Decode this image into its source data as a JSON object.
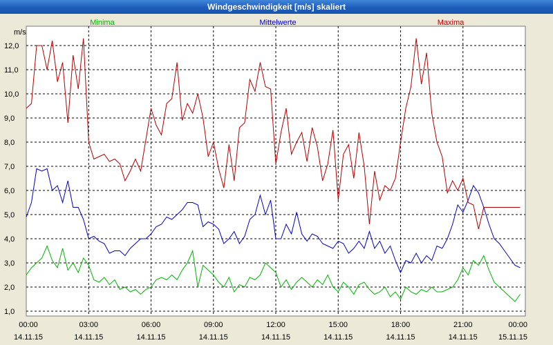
{
  "window": {
    "title": "Windgeschwindigkeit [m/s] skaliert"
  },
  "chart_data": {
    "type": "line",
    "title": "Windgeschwindigkeit [m/s] skaliert",
    "ylabel": "m/s",
    "xlabel": "",
    "ylim": [
      0.8,
      12.8
    ],
    "xlim": [
      0,
      24
    ],
    "grid": true,
    "yticks": [
      "1,0",
      "2,0",
      "3,0",
      "4,0",
      "5,0",
      "6,0",
      "7,0",
      "8,0",
      "9,0",
      "10,0",
      "11,0",
      "12,0"
    ],
    "xticks": [
      {
        "time": "00:00",
        "date": "14.11.15"
      },
      {
        "time": "03:00",
        "date": "14.11.15"
      },
      {
        "time": "06:00",
        "date": "14.11.15"
      },
      {
        "time": "09:00",
        "date": "14.11.15"
      },
      {
        "time": "12:00",
        "date": "14.11.15"
      },
      {
        "time": "15:00",
        "date": "14.11.15"
      },
      {
        "time": "18:00",
        "date": "14.11.15"
      },
      {
        "time": "21:00",
        "date": "14.11.15"
      },
      {
        "time": "00:00",
        "date": "15.11.15"
      }
    ],
    "series": [
      {
        "name": "Minima",
        "color": "#00B400",
        "x": [
          0,
          0.25,
          0.5,
          0.75,
          1,
          1.25,
          1.5,
          1.75,
          2,
          2.25,
          2.5,
          2.75,
          3,
          3.25,
          3.5,
          3.75,
          4,
          4.25,
          4.5,
          4.75,
          5,
          5.25,
          5.5,
          5.75,
          6,
          6.25,
          6.5,
          6.75,
          7,
          7.25,
          7.5,
          7.75,
          8,
          8.25,
          8.5,
          8.75,
          9,
          9.25,
          9.5,
          9.75,
          10,
          10.25,
          10.5,
          10.75,
          11,
          11.25,
          11.5,
          11.75,
          12,
          12.25,
          12.5,
          12.75,
          13,
          13.25,
          13.5,
          13.75,
          14,
          14.25,
          14.5,
          14.75,
          15,
          15.25,
          15.5,
          15.75,
          16,
          16.25,
          16.5,
          16.75,
          17,
          17.25,
          17.5,
          17.75,
          18,
          18.25,
          18.5,
          18.75,
          19,
          19.25,
          19.5,
          19.75,
          20,
          20.25,
          20.5,
          20.75,
          21,
          21.25,
          21.5,
          21.75,
          22,
          22.25,
          22.5,
          22.75,
          23,
          23.25,
          23.5,
          23.75
        ],
        "values": [
          2.5,
          2.8,
          3.0,
          3.2,
          3.7,
          3.1,
          2.8,
          3.6,
          2.7,
          3.0,
          2.6,
          3.2,
          2.9,
          2.3,
          2.2,
          2.4,
          2.1,
          2.3,
          1.9,
          2.0,
          1.8,
          1.9,
          1.7,
          1.9,
          2.0,
          2.3,
          2.4,
          2.3,
          2.5,
          2.3,
          2.7,
          3.0,
          3.5,
          2.0,
          2.9,
          2.7,
          2.5,
          2.2,
          2.0,
          2.4,
          1.8,
          2.1,
          2.0,
          2.4,
          2.3,
          2.5,
          3.0,
          2.8,
          2.6,
          2.0,
          2.3,
          1.9,
          2.2,
          2.4,
          2.2,
          2.0,
          2.3,
          2.1,
          2.5,
          2.0,
          1.8,
          2.2,
          2.0,
          1.7,
          2.1,
          2.2,
          1.9,
          1.7,
          1.8,
          2.0,
          1.6,
          1.8,
          1.5,
          2.0,
          1.8,
          1.7,
          1.9,
          1.8,
          2.0,
          1.8,
          1.8,
          1.9,
          2.0,
          2.3,
          2.8,
          2.5,
          3.1,
          2.9,
          3.3,
          2.7,
          2.2,
          2.0,
          1.8,
          1.6,
          1.4,
          1.7
        ]
      },
      {
        "name": "Mittelwerte",
        "color": "#0000C0",
        "x": [
          0,
          0.25,
          0.5,
          0.75,
          1,
          1.25,
          1.5,
          1.75,
          2,
          2.25,
          2.5,
          2.75,
          3,
          3.25,
          3.5,
          3.75,
          4,
          4.25,
          4.5,
          4.75,
          5,
          5.25,
          5.5,
          5.75,
          6,
          6.25,
          6.5,
          6.75,
          7,
          7.25,
          7.5,
          7.75,
          8,
          8.25,
          8.5,
          8.75,
          9,
          9.25,
          9.5,
          9.75,
          10,
          10.25,
          10.5,
          10.75,
          11,
          11.25,
          11.5,
          11.75,
          12,
          12.25,
          12.5,
          12.75,
          13,
          13.25,
          13.5,
          13.75,
          14,
          14.25,
          14.5,
          14.75,
          15,
          15.25,
          15.5,
          15.75,
          16,
          16.25,
          16.5,
          16.75,
          17,
          17.25,
          17.5,
          17.75,
          18,
          18.25,
          18.5,
          18.75,
          19,
          19.25,
          19.5,
          19.75,
          20,
          20.25,
          20.5,
          20.75,
          21,
          21.25,
          21.5,
          21.75,
          22,
          22.25,
          22.5,
          22.75,
          23,
          23.25,
          23.5,
          23.75
        ],
        "values": [
          4.9,
          5.5,
          6.9,
          6.8,
          6.9,
          6.0,
          6.2,
          5.5,
          6.4,
          5.3,
          5.3,
          4.8,
          4.0,
          4.1,
          3.9,
          3.8,
          3.4,
          3.5,
          3.5,
          3.3,
          3.6,
          3.8,
          4.0,
          4.0,
          4.2,
          4.5,
          4.6,
          4.9,
          4.8,
          5.0,
          5.2,
          5.5,
          5.5,
          5.4,
          4.5,
          4.7,
          4.6,
          4.4,
          3.8,
          4.0,
          4.3,
          3.8,
          4.1,
          4.8,
          5.0,
          5.8,
          5.0,
          5.6,
          4.0,
          4.0,
          4.6,
          4.2,
          5.1,
          4.2,
          3.9,
          4.2,
          4.1,
          3.8,
          3.7,
          3.6,
          3.9,
          3.8,
          3.4,
          3.6,
          3.9,
          3.6,
          4.3,
          3.6,
          3.9,
          3.4,
          3.7,
          3.1,
          2.6,
          3.1,
          3.0,
          3.4,
          3.0,
          3.3,
          3.1,
          3.7,
          3.6,
          4.0,
          4.6,
          5.4,
          5.1,
          5.6,
          6.2,
          5.9,
          5.3,
          4.6,
          4.0,
          3.8,
          3.5,
          3.2,
          2.9,
          2.8
        ]
      },
      {
        "name": "Maxima",
        "color": "#B40000",
        "x": [
          0,
          0.25,
          0.5,
          0.75,
          1,
          1.25,
          1.5,
          1.75,
          2,
          2.25,
          2.5,
          2.75,
          3,
          3.25,
          3.5,
          3.75,
          4,
          4.25,
          4.5,
          4.75,
          5,
          5.25,
          5.5,
          5.75,
          6,
          6.25,
          6.5,
          6.75,
          7,
          7.25,
          7.5,
          7.75,
          8,
          8.25,
          8.5,
          8.75,
          9,
          9.25,
          9.5,
          9.75,
          10,
          10.25,
          10.5,
          10.75,
          11,
          11.25,
          11.5,
          11.75,
          12,
          12.25,
          12.5,
          12.75,
          13,
          13.25,
          13.5,
          13.75,
          14,
          14.25,
          14.5,
          14.75,
          15,
          15.25,
          15.5,
          15.75,
          16,
          16.25,
          16.5,
          16.75,
          17,
          17.25,
          17.5,
          17.75,
          18,
          18.25,
          18.5,
          18.75,
          19,
          19.25,
          19.5,
          19.75,
          20,
          20.25,
          20.5,
          20.75,
          21,
          21.25,
          21.5,
          21.75,
          22,
          22.25,
          22.5,
          22.75,
          23,
          23.25,
          23.5,
          23.75
        ],
        "values": [
          9.4,
          9.6,
          12.0,
          12.0,
          11.0,
          12.2,
          10.5,
          11.3,
          8.8,
          11.6,
          10.2,
          12.3,
          8.0,
          7.3,
          7.4,
          7.5,
          7.2,
          7.3,
          7.1,
          6.4,
          6.8,
          7.3,
          6.8,
          8.1,
          9.4,
          8.7,
          8.3,
          9.6,
          9.8,
          11.3,
          8.9,
          9.6,
          9.2,
          10.0,
          9.0,
          7.4,
          8.0,
          6.9,
          6.1,
          7.9,
          6.4,
          8.6,
          8.8,
          10.6,
          10.1,
          11.3,
          10.3,
          10.2,
          7.1,
          8.4,
          9.4,
          7.5,
          8.0,
          8.4,
          7.2,
          8.6,
          7.8,
          6.4,
          7.1,
          8.5,
          5.6,
          7.5,
          7.9,
          6.5,
          8.4,
          7.0,
          4.6,
          6.8,
          5.6,
          6.2,
          6.0,
          6.5,
          8.0,
          9.4,
          10.3,
          12.3,
          10.4,
          11.7,
          9.2,
          8.0,
          7.4,
          5.9,
          6.4,
          6.0,
          6.5,
          5.5,
          5.4,
          4.4,
          5.3,
          5.3,
          5.3,
          5.3,
          5.3,
          5.3,
          5.3,
          5.3
        ]
      }
    ]
  }
}
